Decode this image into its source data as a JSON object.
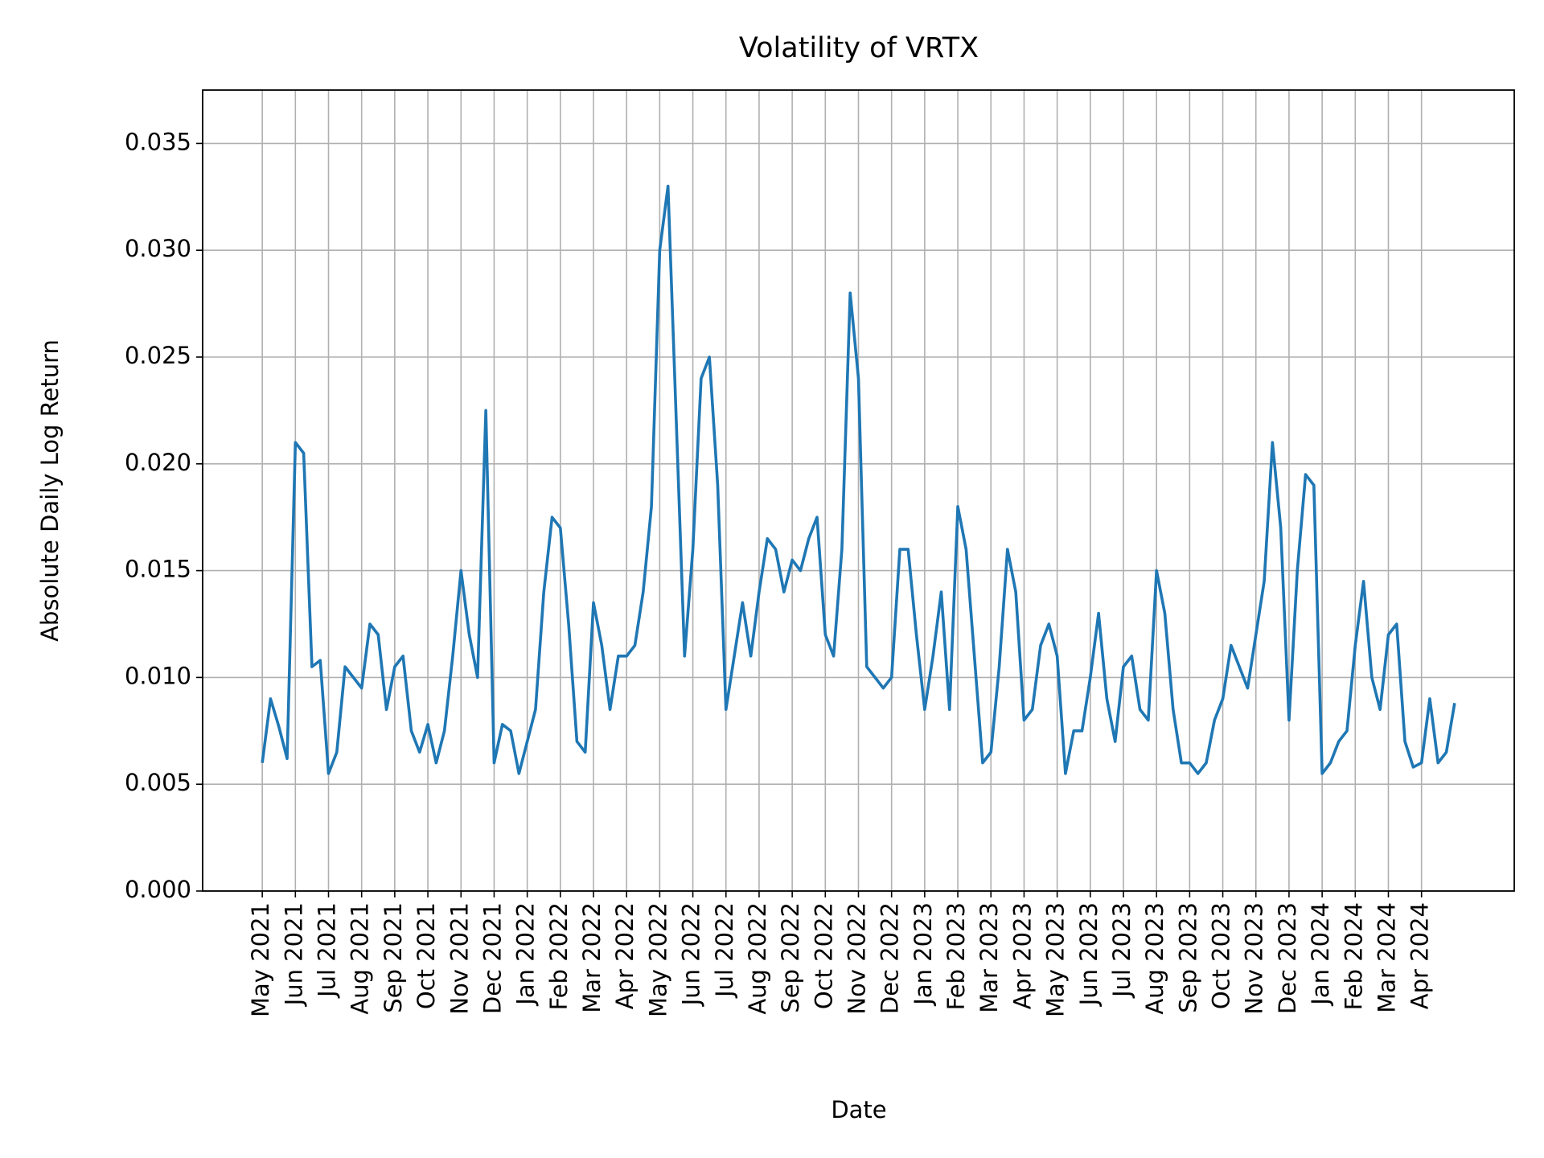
{
  "chart_data": {
    "type": "line",
    "title": "Volatility of VRTX",
    "xlabel": "Date",
    "ylabel": "Absolute Daily Log Return",
    "x": [
      "2021-05",
      "2021-05",
      "2021-05",
      "2021-05",
      "2021-06",
      "2021-06",
      "2021-06",
      "2021-06",
      "2021-07",
      "2021-07",
      "2021-07",
      "2021-07",
      "2021-08",
      "2021-08",
      "2021-08",
      "2021-08",
      "2021-09",
      "2021-09",
      "2021-09",
      "2021-09",
      "2021-10",
      "2021-10",
      "2021-10",
      "2021-10",
      "2021-11",
      "2021-11",
      "2021-11",
      "2021-11",
      "2021-12",
      "2021-12",
      "2021-12",
      "2021-12",
      "2022-01",
      "2022-01",
      "2022-01",
      "2022-01",
      "2022-02",
      "2022-02",
      "2022-02",
      "2022-02",
      "2022-03",
      "2022-03",
      "2022-03",
      "2022-03",
      "2022-04",
      "2022-04",
      "2022-04",
      "2022-04",
      "2022-05",
      "2022-05",
      "2022-05",
      "2022-05",
      "2022-06",
      "2022-06",
      "2022-06",
      "2022-06",
      "2022-07",
      "2022-07",
      "2022-07",
      "2022-07",
      "2022-08",
      "2022-08",
      "2022-08",
      "2022-08",
      "2022-09",
      "2022-09",
      "2022-09",
      "2022-09",
      "2022-10",
      "2022-10",
      "2022-10",
      "2022-10",
      "2022-11",
      "2022-11",
      "2022-11",
      "2022-11",
      "2022-12",
      "2022-12",
      "2022-12",
      "2022-12",
      "2023-01",
      "2023-01",
      "2023-01",
      "2023-01",
      "2023-02",
      "2023-02",
      "2023-02",
      "2023-02",
      "2023-03",
      "2023-03",
      "2023-03",
      "2023-03",
      "2023-04",
      "2023-04",
      "2023-04",
      "2023-04",
      "2023-05",
      "2023-05",
      "2023-05",
      "2023-05",
      "2023-06",
      "2023-06",
      "2023-06",
      "2023-06",
      "2023-07",
      "2023-07",
      "2023-07",
      "2023-07",
      "2023-08",
      "2023-08",
      "2023-08",
      "2023-08",
      "2023-09",
      "2023-09",
      "2023-09",
      "2023-09",
      "2023-10",
      "2023-10",
      "2023-10",
      "2023-10",
      "2023-11",
      "2023-11",
      "2023-11",
      "2023-11",
      "2023-12",
      "2023-12",
      "2023-12",
      "2023-12",
      "2024-01",
      "2024-01",
      "2024-01",
      "2024-01",
      "2024-02",
      "2024-02",
      "2024-02",
      "2024-02",
      "2024-03",
      "2024-03",
      "2024-03",
      "2024-03",
      "2024-04",
      "2024-04",
      "2024-04",
      "2024-04",
      "2024-05"
    ],
    "series": [
      {
        "name": "Volatility",
        "color": "#1f77b4",
        "values": [
          0.006,
          0.009,
          0.0077,
          0.0062,
          0.021,
          0.0205,
          0.0105,
          0.0108,
          0.0055,
          0.0065,
          0.0105,
          0.01,
          0.0095,
          0.0125,
          0.012,
          0.0085,
          0.0105,
          0.011,
          0.0075,
          0.0065,
          0.0078,
          0.006,
          0.0075,
          0.011,
          0.015,
          0.012,
          0.01,
          0.0225,
          0.006,
          0.0078,
          0.0075,
          0.0055,
          0.007,
          0.0085,
          0.014,
          0.0175,
          0.017,
          0.0125,
          0.007,
          0.0065,
          0.0135,
          0.0115,
          0.0085,
          0.011,
          0.011,
          0.0115,
          0.014,
          0.018,
          0.03,
          0.033,
          0.022,
          0.011,
          0.016,
          0.024,
          0.025,
          0.019,
          0.0085,
          0.011,
          0.0135,
          0.011,
          0.014,
          0.0165,
          0.016,
          0.014,
          0.0155,
          0.015,
          0.0165,
          0.0175,
          0.012,
          0.011,
          0.016,
          0.028,
          0.024,
          0.0105,
          0.01,
          0.0095,
          0.01,
          0.016,
          0.016,
          0.012,
          0.0085,
          0.011,
          0.014,
          0.0085,
          0.018,
          0.016,
          0.011,
          0.006,
          0.0065,
          0.0105,
          0.016,
          0.014,
          0.008,
          0.0085,
          0.0115,
          0.0125,
          0.011,
          0.0055,
          0.0075,
          0.0075,
          0.01,
          0.013,
          0.009,
          0.007,
          0.0105,
          0.011,
          0.0085,
          0.008,
          0.015,
          0.013,
          0.0085,
          0.006,
          0.006,
          0.0055,
          0.006,
          0.008,
          0.009,
          0.0115,
          0.0105,
          0.0095,
          0.012,
          0.0145,
          0.021,
          0.017,
          0.008,
          0.015,
          0.0195,
          0.019,
          0.0055,
          0.006,
          0.007,
          0.0075,
          0.0115,
          0.0145,
          0.01,
          0.0085,
          0.012,
          0.0125,
          0.007,
          0.0058,
          0.006,
          0.009,
          0.006,
          0.0065,
          0.0088
        ]
      }
    ],
    "xticks": [
      {
        "value": "2021-05",
        "label": "May 2021"
      },
      {
        "value": "2021-06",
        "label": "Jun 2021"
      },
      {
        "value": "2021-07",
        "label": "Jul 2021"
      },
      {
        "value": "2021-08",
        "label": "Aug 2021"
      },
      {
        "value": "2021-09",
        "label": "Sep 2021"
      },
      {
        "value": "2021-10",
        "label": "Oct 2021"
      },
      {
        "value": "2021-11",
        "label": "Nov 2021"
      },
      {
        "value": "2021-12",
        "label": "Dec 2021"
      },
      {
        "value": "2022-01",
        "label": "Jan 2022"
      },
      {
        "value": "2022-02",
        "label": "Feb 2022"
      },
      {
        "value": "2022-03",
        "label": "Mar 2022"
      },
      {
        "value": "2022-04",
        "label": "Apr 2022"
      },
      {
        "value": "2022-05",
        "label": "May 2022"
      },
      {
        "value": "2022-06",
        "label": "Jun 2022"
      },
      {
        "value": "2022-07",
        "label": "Jul 2022"
      },
      {
        "value": "2022-08",
        "label": "Aug 2022"
      },
      {
        "value": "2022-09",
        "label": "Sep 2022"
      },
      {
        "value": "2022-10",
        "label": "Oct 2022"
      },
      {
        "value": "2022-11",
        "label": "Nov 2022"
      },
      {
        "value": "2022-12",
        "label": "Dec 2022"
      },
      {
        "value": "2023-01",
        "label": "Jan 2023"
      },
      {
        "value": "2023-02",
        "label": "Feb 2023"
      },
      {
        "value": "2023-03",
        "label": "Mar 2023"
      },
      {
        "value": "2023-04",
        "label": "Apr 2023"
      },
      {
        "value": "2023-05",
        "label": "May 2023"
      },
      {
        "value": "2023-06",
        "label": "Jun 2023"
      },
      {
        "value": "2023-07",
        "label": "Jul 2023"
      },
      {
        "value": "2023-08",
        "label": "Aug 2023"
      },
      {
        "value": "2023-09",
        "label": "Sep 2023"
      },
      {
        "value": "2023-10",
        "label": "Oct 2023"
      },
      {
        "value": "2023-11",
        "label": "Nov 2023"
      },
      {
        "value": "2023-12",
        "label": "Dec 2023"
      },
      {
        "value": "2024-01",
        "label": "Jan 2024"
      },
      {
        "value": "2024-02",
        "label": "Feb 2024"
      },
      {
        "value": "2024-03",
        "label": "Mar 2024"
      },
      {
        "value": "2024-04",
        "label": "Apr 2024"
      }
    ],
    "ylim": [
      0,
      0.0375
    ],
    "yticks": [
      {
        "value": 0,
        "label": "0.000"
      },
      0.005,
      {
        "value": 0.01,
        "label": "0.010"
      },
      0.015,
      {
        "value": 0.02,
        "label": "0.020"
      },
      0.025,
      {
        "value": 0.03,
        "label": "0.030"
      },
      0.035
    ],
    "grid": true
  }
}
